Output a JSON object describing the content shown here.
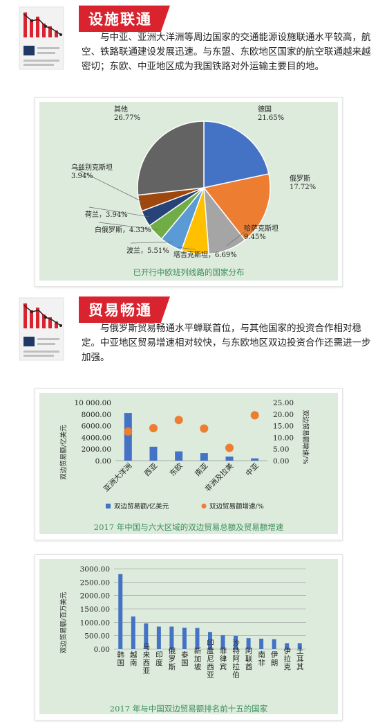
{
  "section1": {
    "title": "设施联通",
    "text": "与中亚、亚洲大洋洲等周边国家的交通能源设施联通水平较高，航空、铁路联通建设发展迅速。与东盟、东欧地区国家的航空联通越来越密切；东欧、中亚地区成为我国铁路对外运输主要目的地。"
  },
  "section2": {
    "title": "贸易畅通",
    "text": "与俄罗斯贸易畅通水平蝉联首位，与其他国家的投资合作相对稳定。中亚地区贸易增速相对较快，与东欧地区双边投资合作还需进一步加强。"
  },
  "chart_data": [
    {
      "type": "pie",
      "caption": "已开行中欧班列线路的国家分布",
      "slices": [
        {
          "label": "德国",
          "value": 21.65,
          "text": "21.65%",
          "color": "#4472c4"
        },
        {
          "label": "俄罗斯",
          "value": 17.72,
          "text": "17.72%",
          "color": "#ed7d31"
        },
        {
          "label": "哈萨克斯坦",
          "value": 9.45,
          "text": "9.45%",
          "color": "#a5a5a5"
        },
        {
          "label": "塔吉克斯坦",
          "value": 6.69,
          "text": "6.69%",
          "color": "#ffc000"
        },
        {
          "label": "波兰",
          "value": 5.51,
          "text": "5.51%",
          "color": "#5b9bd5"
        },
        {
          "label": "白俄罗斯",
          "value": 4.33,
          "text": "4.33%",
          "color": "#70ad47"
        },
        {
          "label": "荷兰",
          "value": 3.94,
          "text": "3.94%",
          "color": "#264478"
        },
        {
          "label": "乌兹别克斯坦",
          "value": 3.94,
          "text": "3.94%",
          "color": "#9e480e"
        },
        {
          "label": "其他",
          "value": 26.77,
          "text": "26.77%",
          "color": "#636363"
        }
      ]
    },
    {
      "type": "bar",
      "caption": "2017 年中国与六大区域的双边贸易总额及贸易额增速",
      "categories": [
        "亚洲大洋洲",
        "西亚",
        "东欧",
        "南亚",
        "非洲及拉美",
        "中亚"
      ],
      "series": [
        {
          "name": "双边贸易额/亿美元",
          "type": "bar",
          "axis": "left",
          "color": "#4472c4",
          "values": [
            8200,
            2400,
            1600,
            1300,
            700,
            400
          ]
        },
        {
          "name": "双边贸易额增速/%",
          "type": "scatter",
          "axis": "right",
          "color": "#ed7d31",
          "values": [
            12.5,
            14.0,
            17.5,
            13.8,
            5.5,
            19.5
          ]
        }
      ],
      "ylabel": "双边贸易额/亿美元",
      "ylabel_right": "双边贸易额增速/%",
      "yticks": [
        "10 000.00",
        "8000.00",
        "6000.00",
        "4000.00",
        "2000.00",
        "0.00"
      ],
      "yticks_right": [
        "25.00",
        "20.00",
        "15.00",
        "10.00",
        "5.00",
        "0.00"
      ],
      "ylim": [
        0,
        10000
      ],
      "ylim_right": [
        0,
        25
      ],
      "legend": "bottom"
    },
    {
      "type": "bar",
      "caption": "2017 年与中国双边贸易额排名前十五的国家",
      "categories": [
        "韩国",
        "越南",
        "马来西亚",
        "印度",
        "俄罗斯",
        "泰国",
        "新加坡",
        "印度尼西亚",
        "菲律宾",
        "沙特阿拉伯",
        "阿联酋",
        "南非",
        "伊朗",
        "伊拉克",
        "土耳其"
      ],
      "values": [
        2800,
        1220,
        960,
        840,
        840,
        800,
        790,
        640,
        520,
        500,
        410,
        390,
        370,
        220,
        220
      ],
      "ylabel": "双边贸易额/百万美元",
      "yticks": [
        "3000.00",
        "2500.00",
        "2000.00",
        "1500.00",
        "1000.00",
        "500.00",
        "0.00"
      ],
      "ylim": [
        0,
        3000
      ],
      "color": "#4472c4"
    }
  ]
}
